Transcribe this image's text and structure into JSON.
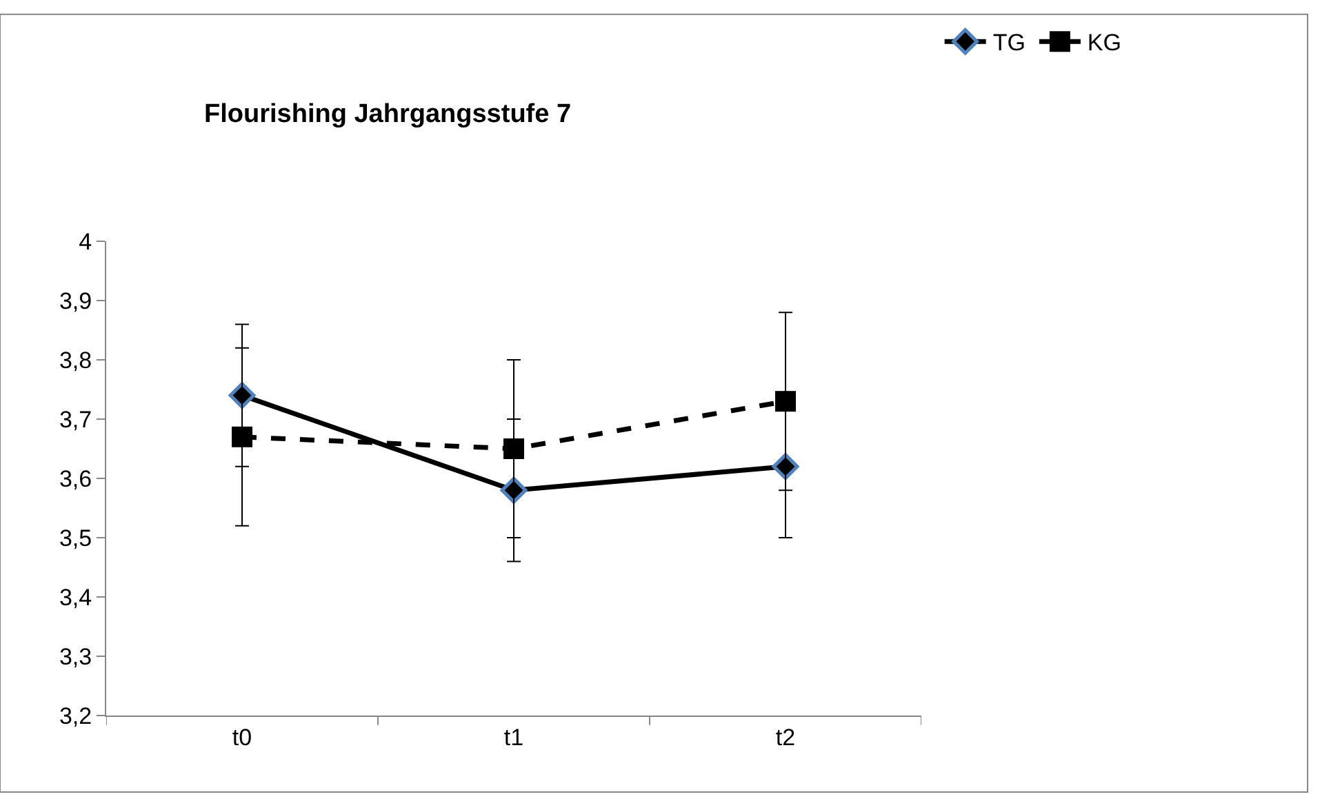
{
  "chart_data": {
    "type": "line",
    "title": "Flourishing Jahrgangsstufe 7",
    "categories": [
      "t0",
      "t1",
      "t2"
    ],
    "series": [
      {
        "name": "TG",
        "color": "#000000",
        "marker": "diamond",
        "line_style": "solid",
        "values": [
          3.74,
          3.58,
          3.62
        ],
        "errors": [
          0.12,
          0.12,
          0.12
        ]
      },
      {
        "name": "KG",
        "color": "#000000",
        "marker": "square",
        "line_style": "dashed",
        "values": [
          3.67,
          3.65,
          3.73
        ],
        "errors": [
          0.15,
          0.15,
          0.15
        ]
      }
    ],
    "ylim": [
      3.2,
      4
    ],
    "yticks": [
      {
        "value": 3.2,
        "label": "3,2"
      },
      {
        "value": 3.3,
        "label": "3,3"
      },
      {
        "value": 3.4,
        "label": "3,4"
      },
      {
        "value": 3.5,
        "label": "3,5"
      },
      {
        "value": 3.6,
        "label": "3,6"
      },
      {
        "value": 3.7,
        "label": "3,7"
      },
      {
        "value": 3.8,
        "label": "3,8"
      },
      {
        "value": 3.9,
        "label": "3,9"
      },
      {
        "value": 4,
        "label": "4"
      }
    ],
    "legend": "top right"
  }
}
